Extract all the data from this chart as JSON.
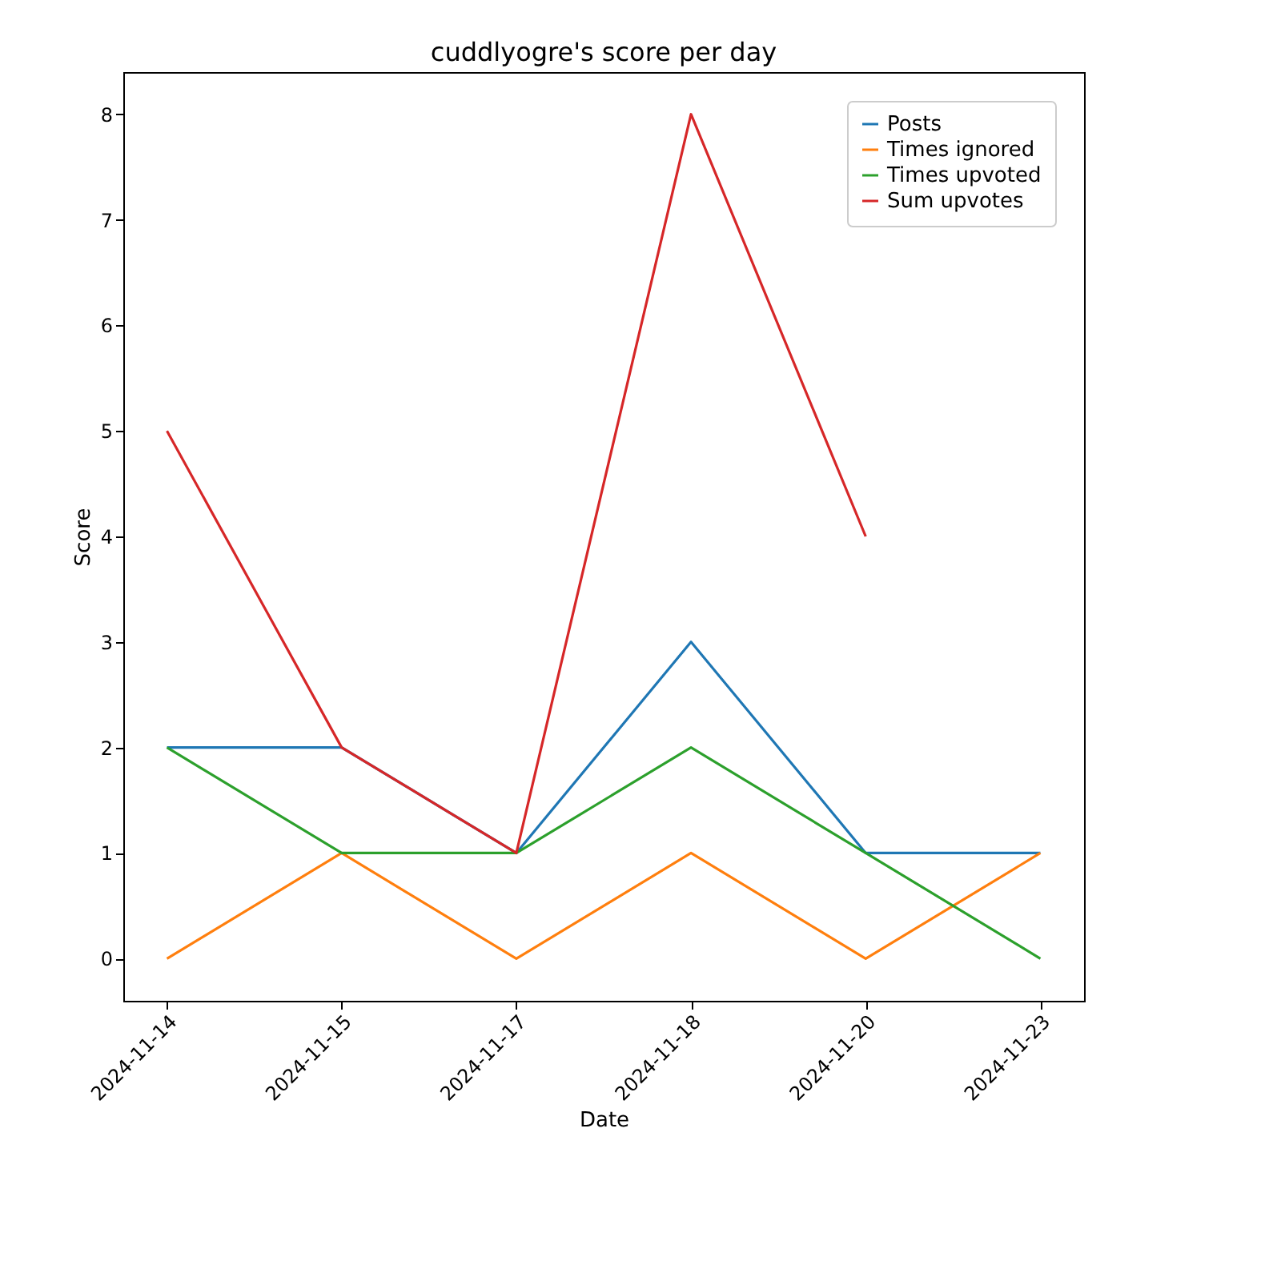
{
  "chart_data": {
    "type": "line",
    "title": "cuddlyogre's score per day",
    "xlabel": "Date",
    "ylabel": "Score",
    "categories": [
      "2024-11-14",
      "2024-11-15",
      "2024-11-17",
      "2024-11-18",
      "2024-11-20",
      "2024-11-23"
    ],
    "series": [
      {
        "name": "Posts",
        "color": "#1f77b4",
        "values": [
          2,
          2,
          1,
          3,
          1,
          1
        ]
      },
      {
        "name": "Times ignored",
        "color": "#ff7f0e",
        "values": [
          0,
          1,
          0,
          1,
          0,
          1
        ]
      },
      {
        "name": "Times upvoted",
        "color": "#2ca02c",
        "values": [
          2,
          1,
          1,
          2,
          1,
          0
        ]
      },
      {
        "name": "Sum upvotes",
        "color": "#d62728",
        "values": [
          5,
          2,
          1,
          8,
          4,
          null
        ]
      }
    ],
    "ylim": [
      -0.4,
      8.4
    ],
    "yticks": [
      0,
      1,
      2,
      3,
      4,
      5,
      6,
      7,
      8
    ],
    "grid": false,
    "legend": "top right",
    "marker": "none",
    "line_style": "solid"
  }
}
